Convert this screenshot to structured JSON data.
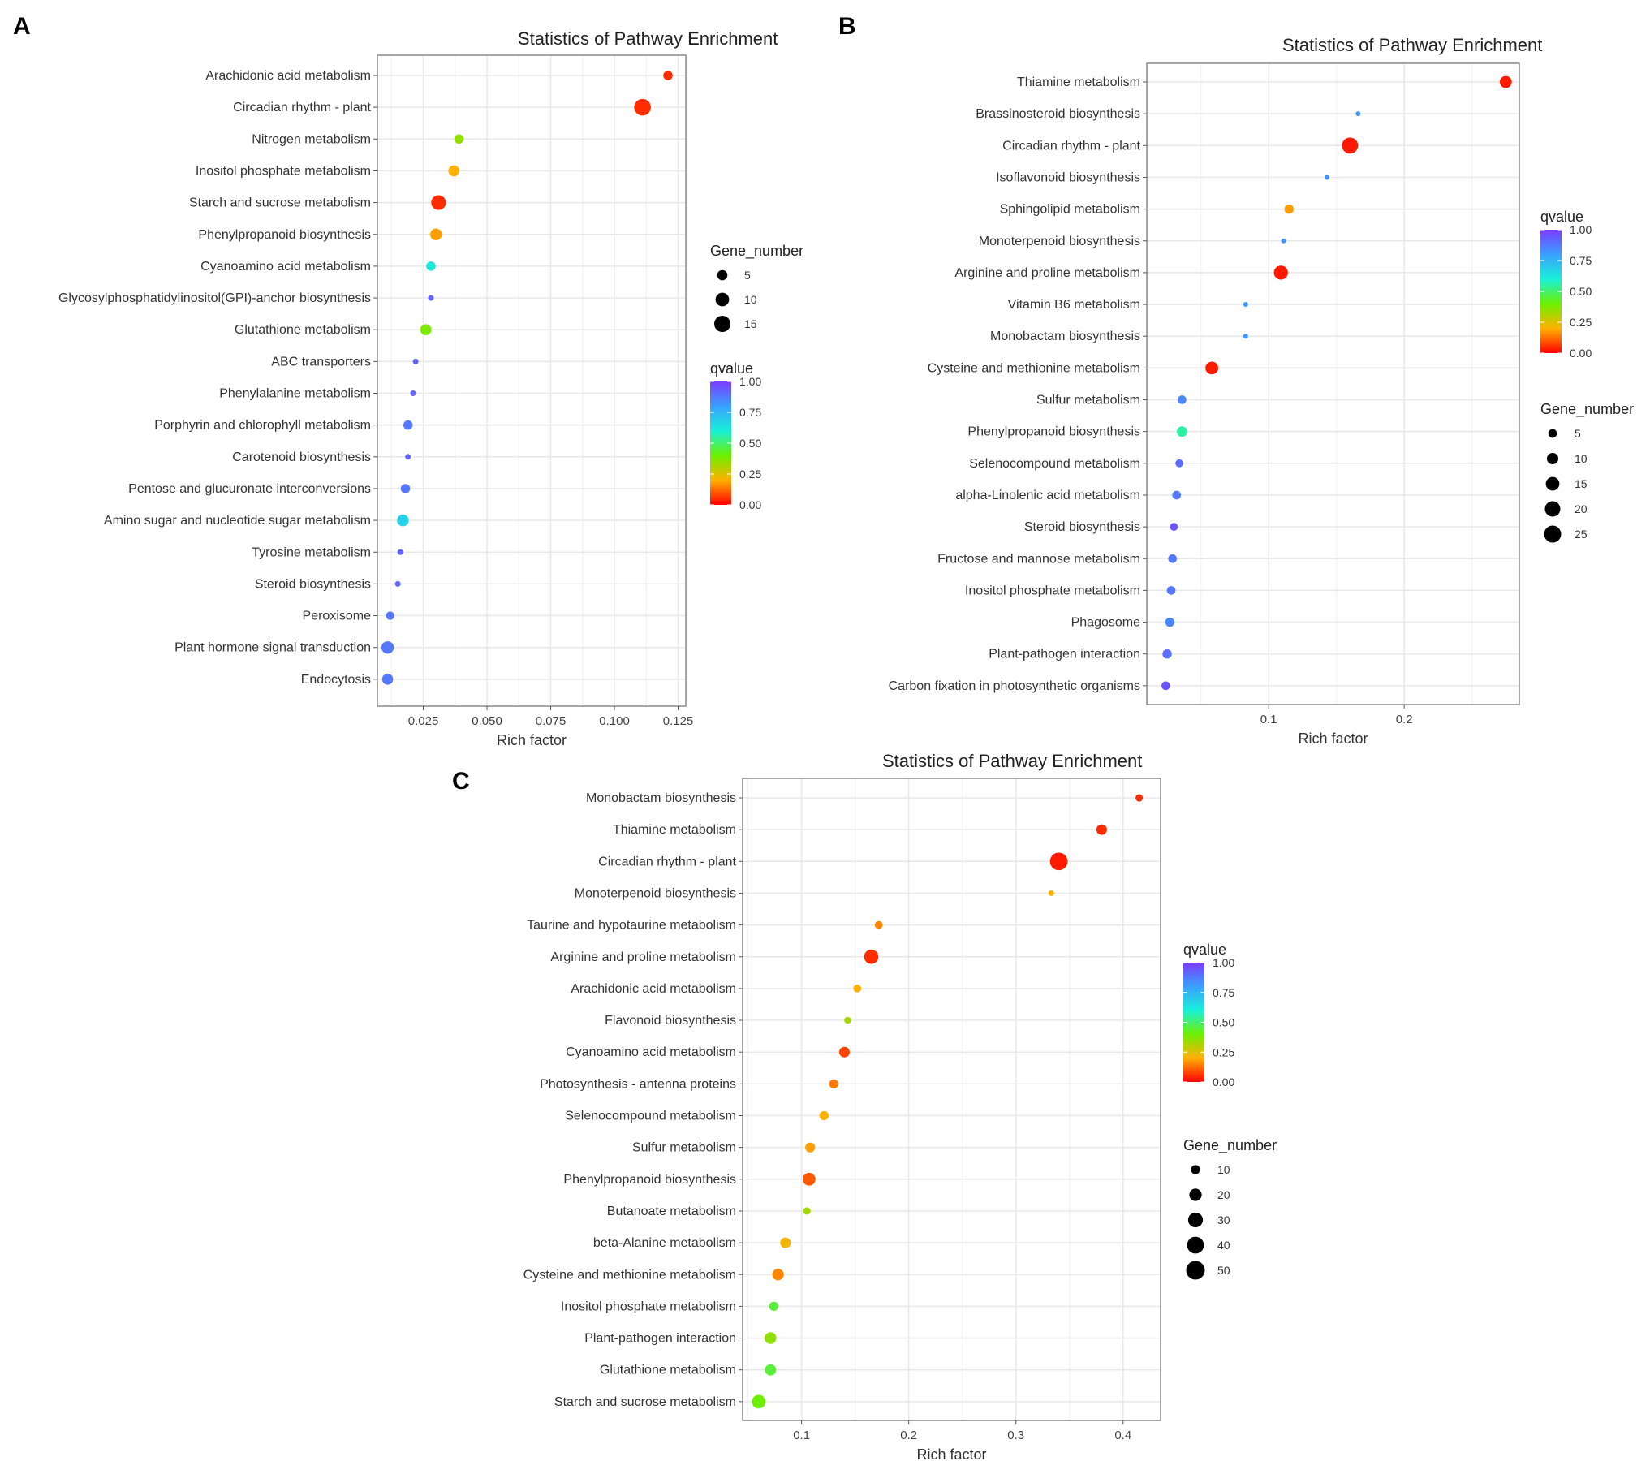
{
  "colors": {
    "panel_background": "#ffffff",
    "grid": "#e8e8e8",
    "border": "#8a8a8a",
    "scale": [
      "#ff0000",
      "#ffb000",
      "#6cf000",
      "#18f0d8",
      "#3aa0ff",
      "#7b3cff"
    ]
  },
  "chart_data": [
    {
      "panel": "A",
      "type": "scatter",
      "title": "Statistics of Pathway Enrichment",
      "xlabel": "Rich factor",
      "ylabel": "",
      "xlim": [
        0.007,
        0.128
      ],
      "xticks": [
        0.025,
        0.05,
        0.075,
        0.1,
        0.125
      ],
      "xtick_labels": [
        "0.025",
        "0.050",
        "0.075",
        "0.100",
        "0.125"
      ],
      "categories": [
        "Arachidonic acid metabolism",
        "Circadian rhythm - plant",
        "Nitrogen metabolism",
        "Inositol phosphate metabolism",
        "Starch and sucrose metabolism",
        "Phenylpropanoid biosynthesis",
        "Cyanoamino acid metabolism",
        "Glycosylphosphatidylinositol(GPI)-anchor biosynthesis",
        "Glutathione metabolism",
        "ABC transporters",
        "Phenylalanine metabolism",
        "Porphyrin and chlorophyll metabolism",
        "Carotenoid biosynthesis",
        "Pentose and glucuronate interconversions",
        "Amino sugar and nucleotide sugar metabolism",
        "Tyrosine metabolism",
        "Steroid biosynthesis",
        "Peroxisome",
        "Plant hormone signal transduction",
        "Endocytosis"
      ],
      "rich_factor": [
        0.121,
        0.111,
        0.039,
        0.037,
        0.031,
        0.03,
        0.028,
        0.028,
        0.026,
        0.022,
        0.021,
        0.019,
        0.019,
        0.018,
        0.017,
        0.016,
        0.015,
        0.012,
        0.011,
        0.011
      ],
      "gene_number": [
        4,
        16,
        4,
        6,
        12,
        7,
        4,
        1,
        6,
        1,
        1,
        4,
        1,
        4,
        7,
        1,
        1,
        3,
        8,
        6
      ],
      "qvalue": [
        0.05,
        0.05,
        0.35,
        0.2,
        0.05,
        0.18,
        0.62,
        0.92,
        0.38,
        0.92,
        0.92,
        0.88,
        0.92,
        0.88,
        0.68,
        0.92,
        0.92,
        0.88,
        0.88,
        0.88
      ],
      "legend_order": [
        "size",
        "color"
      ],
      "size_legend": {
        "title": "Gene_number",
        "values": [
          5,
          10,
          15
        ]
      },
      "color_legend": {
        "title": "qvalue",
        "ticks": [
          1.0,
          0.75,
          0.5,
          0.25,
          0.0
        ],
        "tick_labels": [
          "1.00",
          "0.75",
          "0.50",
          "0.25",
          "0.00"
        ]
      }
    },
    {
      "panel": "B",
      "type": "scatter",
      "title": "Statistics of Pathway Enrichment",
      "xlabel": "Rich factor",
      "ylabel": "",
      "xlim": [
        0.01,
        0.285
      ],
      "xticks": [
        0.1,
        0.2
      ],
      "xtick_labels": [
        "0.1",
        "0.2"
      ],
      "categories": [
        "Thiamine metabolism",
        "Brassinosteroid biosynthesis",
        "Circadian rhythm - plant",
        "Isoflavonoid biosynthesis",
        "Sphingolipid metabolism",
        "Monoterpenoid biosynthesis",
        "Arginine and proline metabolism",
        "Vitamin B6 metabolism",
        "Monobactam biosynthesis",
        "Cysteine and methionine metabolism",
        "Sulfur metabolism",
        "Phenylpropanoid biosynthesis",
        "Selenocompound metabolism",
        "alpha-Linolenic acid metabolism",
        "Steroid biosynthesis",
        "Fructose and mannose metabolism",
        "Inositol phosphate metabolism",
        "Phagosome",
        "Plant-pathogen interaction",
        "Carbon fixation in photosynthetic organisms"
      ],
      "rich_factor": [
        0.275,
        0.166,
        0.16,
        0.143,
        0.115,
        0.111,
        0.109,
        0.083,
        0.083,
        0.058,
        0.036,
        0.036,
        0.034,
        0.032,
        0.03,
        0.029,
        0.028,
        0.027,
        0.025,
        0.024
      ],
      "gene_number": [
        11,
        1,
        22,
        1,
        6,
        1,
        16,
        1,
        1,
        13,
        5,
        8,
        4,
        5,
        4,
        5,
        5,
        6,
        6,
        5
      ],
      "qvalue": [
        0.03,
        0.82,
        0.03,
        0.82,
        0.18,
        0.82,
        0.03,
        0.82,
        0.82,
        0.03,
        0.85,
        0.55,
        0.9,
        0.88,
        0.95,
        0.88,
        0.88,
        0.85,
        0.9,
        0.95
      ],
      "legend_order": [
        "color",
        "size"
      ],
      "size_legend": {
        "title": "Gene_number",
        "values": [
          5,
          10,
          15,
          20,
          25
        ]
      },
      "color_legend": {
        "title": "qvalue",
        "ticks": [
          1.0,
          0.75,
          0.5,
          0.25,
          0.0
        ],
        "tick_labels": [
          "1.00",
          "0.75",
          "0.50",
          "0.25",
          "0.00"
        ]
      }
    },
    {
      "panel": "C",
      "type": "scatter",
      "title": "Statistics of Pathway Enrichment",
      "xlabel": "Rich factor",
      "ylabel": "",
      "xlim": [
        0.045,
        0.435
      ],
      "xticks": [
        0.1,
        0.2,
        0.3,
        0.4
      ],
      "xtick_labels": [
        "0.1",
        "0.2",
        "0.3",
        "0.4"
      ],
      "categories": [
        "Monobactam biosynthesis",
        "Thiamine metabolism",
        "Circadian rhythm - plant",
        "Monoterpenoid biosynthesis",
        "Taurine and hypotaurine metabolism",
        "Arginine and proline metabolism",
        "Arachidonic acid metabolism",
        "Flavonoid biosynthesis",
        "Cyanoamino acid metabolism",
        "Photosynthesis - antenna proteins",
        "Selenocompound metabolism",
        "Sulfur metabolism",
        "Phenylpropanoid biosynthesis",
        "Butanoate metabolism",
        "beta-Alanine metabolism",
        "Cysteine and methionine metabolism",
        "Inositol phosphate metabolism",
        "Plant-pathogen interaction",
        "Glutathione metabolism",
        "Starch and sucrose metabolism"
      ],
      "rich_factor": [
        0.415,
        0.38,
        0.34,
        0.333,
        0.172,
        0.165,
        0.152,
        0.143,
        0.14,
        0.13,
        0.121,
        0.108,
        0.107,
        0.105,
        0.085,
        0.078,
        0.074,
        0.071,
        0.071,
        0.06
      ],
      "gene_number": [
        6,
        14,
        44,
        3,
        7,
        28,
        7,
        5,
        14,
        10,
        10,
        12,
        22,
        6,
        14,
        17,
        10,
        18,
        16,
        25
      ],
      "qvalue": [
        0.05,
        0.05,
        0.03,
        0.2,
        0.15,
        0.05,
        0.2,
        0.32,
        0.08,
        0.14,
        0.2,
        0.18,
        0.1,
        0.33,
        0.22,
        0.15,
        0.45,
        0.35,
        0.45,
        0.4
      ],
      "legend_order": [
        "color",
        "size"
      ],
      "size_legend": {
        "title": "Gene_number",
        "values": [
          10,
          20,
          30,
          40,
          50
        ]
      },
      "color_legend": {
        "title": "qvalue",
        "ticks": [
          1.0,
          0.75,
          0.5,
          0.25,
          0.0
        ],
        "tick_labels": [
          "1.00",
          "0.75",
          "0.50",
          "0.25",
          "0.00"
        ]
      }
    }
  ]
}
